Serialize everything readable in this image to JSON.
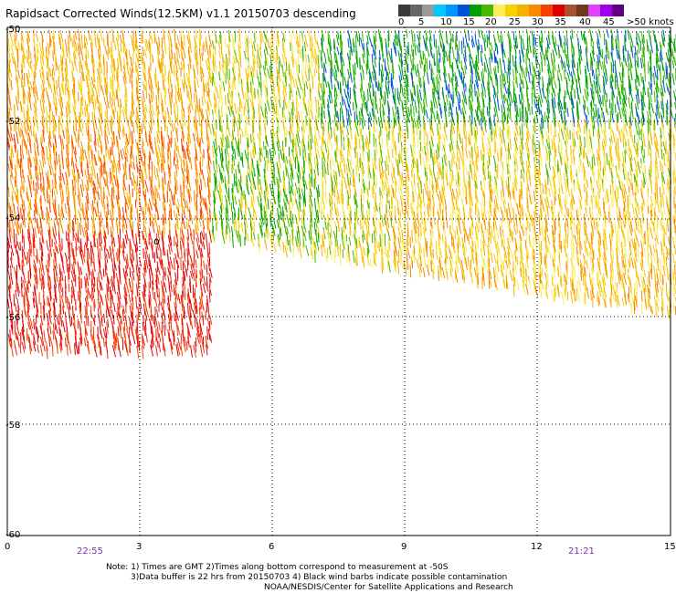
{
  "title": "Rapidsact Corrected Winds(12.5KM) v1.1 20150703 descending",
  "legend": {
    "unit_label": "knots",
    "colors": [
      "#3a3a3a",
      "#666666",
      "#999999",
      "#00c8ff",
      "#0096ff",
      "#0050d8",
      "#00a000",
      "#48b800",
      "#f8ee60",
      "#f8d000",
      "#f8b000",
      "#f88800",
      "#f84000",
      "#e00000",
      "#a85030",
      "#6b3b1b",
      "#e040ff",
      "#a000e8",
      "#600080"
    ],
    "labels": [
      "0",
      "5",
      "10",
      "15",
      "20",
      "25",
      "30",
      "35",
      "40",
      "45",
      ">50 knots"
    ]
  },
  "map": {
    "lat_labels": [
      "-50",
      "-52",
      "-54",
      "-56",
      "-58",
      "-60"
    ],
    "lon_labels": [
      "0",
      "3",
      "6",
      "9",
      "12",
      "15"
    ],
    "times": [
      "22:55",
      "21:21"
    ],
    "contamination_marker": "o"
  },
  "notes": {
    "line1": "Note: 1) Times are GMT 2)Times along bottom correspond to measurement at -50S",
    "line2": "3)Data buffer is 22 hrs from 20150703 4) Black wind barbs indicate possible contamination",
    "line3": "NOAA/NESDIS/Center for Satellite Applications and Research"
  }
}
